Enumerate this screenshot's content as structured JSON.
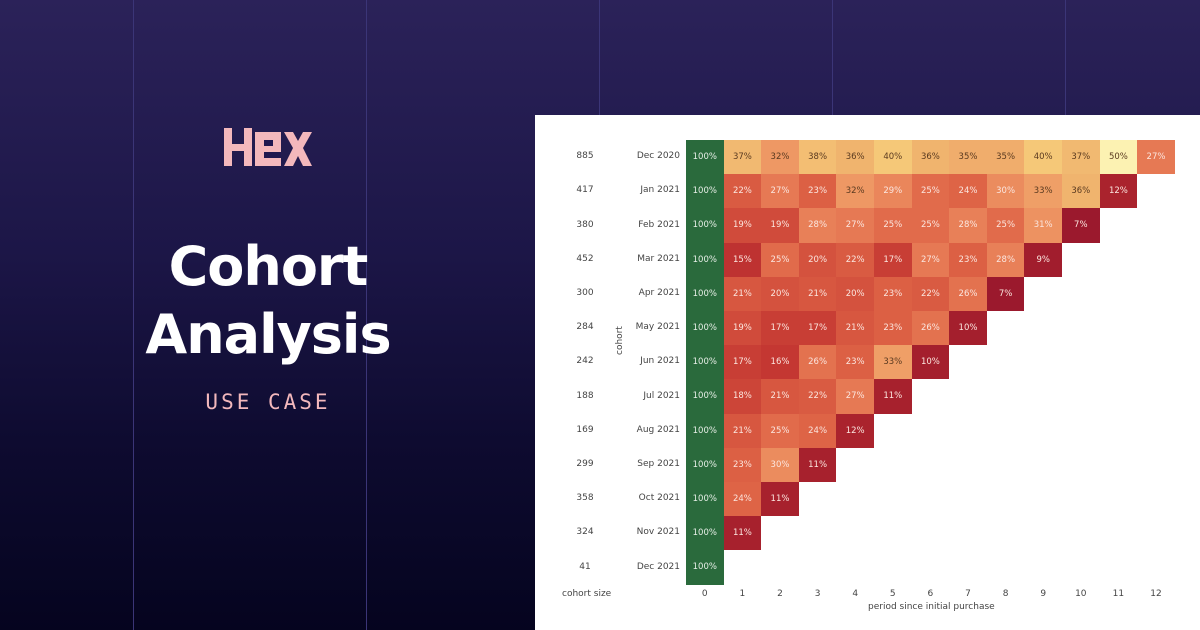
{
  "brand": {
    "name": "HEX",
    "color": "#f3b8bc"
  },
  "hero": {
    "title_line1": "Cohort",
    "title_line2": "Analysis",
    "subtitle": "USE CASE"
  },
  "colors": {
    "background_top": "#2b2259",
    "background_bottom": "#05041f",
    "accent_pink": "#f3b8bc",
    "period0_green": "#2a6a3c"
  },
  "chart_data": {
    "type": "heatmap",
    "title": "",
    "xlabel": "period since initial purchase",
    "ylabel": "cohort",
    "x": [
      "0",
      "1",
      "2",
      "3",
      "4",
      "5",
      "6",
      "7",
      "8",
      "9",
      "10",
      "11",
      "12"
    ],
    "cohort_size_label": "cohort size",
    "rows": [
      {
        "cohort": "Dec 2020",
        "size": "885",
        "values": [
          "100%",
          "37%",
          "32%",
          "38%",
          "36%",
          "40%",
          "36%",
          "35%",
          "35%",
          "40%",
          "37%",
          "50%",
          "27%"
        ]
      },
      {
        "cohort": "Jan 2021",
        "size": "417",
        "values": [
          "100%",
          "22%",
          "27%",
          "23%",
          "32%",
          "29%",
          "25%",
          "24%",
          "30%",
          "33%",
          "36%",
          "12%"
        ]
      },
      {
        "cohort": "Feb 2021",
        "size": "380",
        "values": [
          "100%",
          "19%",
          "19%",
          "28%",
          "27%",
          "25%",
          "25%",
          "28%",
          "25%",
          "31%",
          "7%"
        ]
      },
      {
        "cohort": "Mar 2021",
        "size": "452",
        "values": [
          "100%",
          "15%",
          "25%",
          "20%",
          "22%",
          "17%",
          "27%",
          "23%",
          "28%",
          "9%"
        ]
      },
      {
        "cohort": "Apr 2021",
        "size": "300",
        "values": [
          "100%",
          "21%",
          "20%",
          "21%",
          "20%",
          "23%",
          "22%",
          "26%",
          "7%"
        ]
      },
      {
        "cohort": "May 2021",
        "size": "284",
        "values": [
          "100%",
          "19%",
          "17%",
          "17%",
          "21%",
          "23%",
          "26%",
          "10%"
        ]
      },
      {
        "cohort": "Jun 2021",
        "size": "242",
        "values": [
          "100%",
          "17%",
          "16%",
          "26%",
          "23%",
          "33%",
          "10%"
        ]
      },
      {
        "cohort": "Jul 2021",
        "size": "188",
        "values": [
          "100%",
          "18%",
          "21%",
          "22%",
          "27%",
          "11%"
        ]
      },
      {
        "cohort": "Aug 2021",
        "size": "169",
        "values": [
          "100%",
          "21%",
          "25%",
          "24%",
          "12%"
        ]
      },
      {
        "cohort": "Sep 2021",
        "size": "299",
        "values": [
          "100%",
          "23%",
          "30%",
          "11%"
        ]
      },
      {
        "cohort": "Oct 2021",
        "size": "358",
        "values": [
          "100%",
          "24%",
          "11%"
        ]
      },
      {
        "cohort": "Nov 2021",
        "size": "324",
        "values": [
          "100%",
          "11%"
        ]
      },
      {
        "cohort": "Dec 2021",
        "size": "41",
        "values": [
          "100%"
        ]
      }
    ],
    "colormap": "RdYlGn-like (red=low retention, yellow=high, green=period 0)",
    "legend": "none",
    "grid": false
  }
}
